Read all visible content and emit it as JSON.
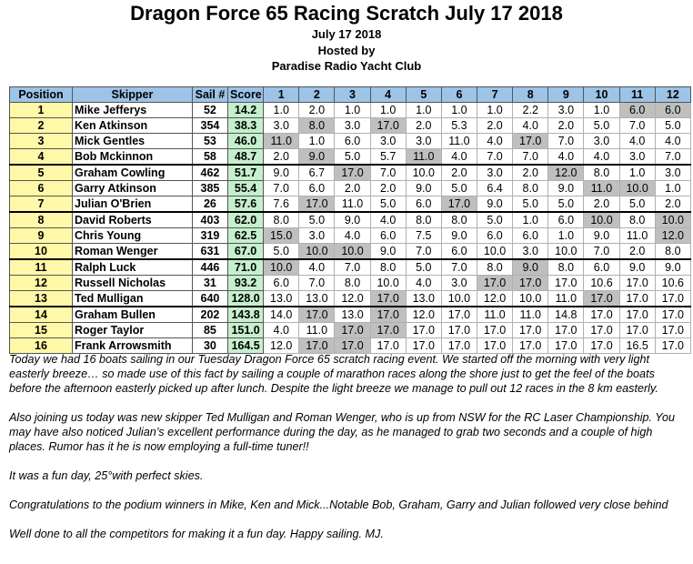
{
  "header": {
    "title": "Dragon Force 65 Racing Scratch  July 17 2018",
    "date": "July 17 2018",
    "hosted_label": "Hosted by",
    "club": "Paradise Radio Yacht Club"
  },
  "table": {
    "columns": [
      "Position",
      "Skipper",
      "Sail #",
      "Score",
      "1",
      "2",
      "3",
      "4",
      "5",
      "6",
      "7",
      "8",
      "9",
      "10",
      "11",
      "12"
    ],
    "rows": [
      {
        "position": "1",
        "skipper": "Mike Jefferys",
        "sail": "52",
        "score": "14.2",
        "races": [
          "1.0",
          "2.0",
          "1.0",
          "1.0",
          "1.0",
          "1.0",
          "1.0",
          "2.2",
          "3.0",
          "1.0",
          "6.0",
          "6.0"
        ],
        "drops": [
          10,
          11
        ]
      },
      {
        "position": "2",
        "skipper": "Ken Atkinson",
        "sail": "354",
        "score": "38.3",
        "races": [
          "3.0",
          "8.0",
          "3.0",
          "17.0",
          "2.0",
          "5.3",
          "2.0",
          "4.0",
          "2.0",
          "5.0",
          "7.0",
          "5.0"
        ],
        "drops": [
          1,
          3
        ]
      },
      {
        "position": "3",
        "skipper": "Mick Gentles",
        "sail": "53",
        "score": "46.0",
        "races": [
          "11.0",
          "1.0",
          "6.0",
          "3.0",
          "3.0",
          "11.0",
          "4.0",
          "17.0",
          "7.0",
          "3.0",
          "4.0",
          "4.0"
        ],
        "drops": [
          0,
          7
        ]
      },
      {
        "position": "4",
        "skipper": "Bob Mckinnon",
        "sail": "58",
        "score": "48.7",
        "races": [
          "2.0",
          "9.0",
          "5.0",
          "5.7",
          "11.0",
          "4.0",
          "7.0",
          "7.0",
          "4.0",
          "4.0",
          "3.0",
          "7.0"
        ],
        "drops": [
          1,
          4
        ]
      },
      {
        "position": "5",
        "skipper": "Graham Cowling",
        "sail": "462",
        "score": "51.7",
        "races": [
          "9.0",
          "6.7",
          "17.0",
          "7.0",
          "10.0",
          "2.0",
          "3.0",
          "2.0",
          "12.0",
          "8.0",
          "1.0",
          "3.0"
        ],
        "drops": [
          2,
          8
        ]
      },
      {
        "position": "6",
        "skipper": "Garry Atkinson",
        "sail": "385",
        "score": "55.4",
        "races": [
          "7.0",
          "6.0",
          "2.0",
          "2.0",
          "9.0",
          "5.0",
          "6.4",
          "8.0",
          "9.0",
          "11.0",
          "10.0",
          "1.0"
        ],
        "drops": [
          9,
          10
        ]
      },
      {
        "position": "7",
        "skipper": "Julian O'Brien",
        "sail": "26",
        "score": "57.6",
        "races": [
          "7.6",
          "17.0",
          "11.0",
          "5.0",
          "6.0",
          "17.0",
          "9.0",
          "5.0",
          "5.0",
          "2.0",
          "5.0",
          "2.0"
        ],
        "drops": [
          1,
          5
        ]
      },
      {
        "position": "8",
        "skipper": "David Roberts",
        "sail": "403",
        "score": "62.0",
        "races": [
          "8.0",
          "5.0",
          "9.0",
          "4.0",
          "8.0",
          "8.0",
          "5.0",
          "1.0",
          "6.0",
          "10.0",
          "8.0",
          "10.0"
        ],
        "drops": [
          9,
          11
        ]
      },
      {
        "position": "9",
        "skipper": "Chris Young",
        "sail": "319",
        "score": "62.5",
        "races": [
          "15.0",
          "3.0",
          "4.0",
          "6.0",
          "7.5",
          "9.0",
          "6.0",
          "6.0",
          "1.0",
          "9.0",
          "11.0",
          "12.0"
        ],
        "drops": [
          0,
          11
        ]
      },
      {
        "position": "10",
        "skipper": "Roman Wenger",
        "sail": "631",
        "score": "67.0",
        "races": [
          "5.0",
          "10.0",
          "10.0",
          "9.0",
          "7.0",
          "6.0",
          "10.0",
          "3.0",
          "10.0",
          "7.0",
          "2.0",
          "8.0"
        ],
        "drops": [
          1,
          2
        ]
      },
      {
        "position": "11",
        "skipper": "Ralph Luck",
        "sail": "446",
        "score": "71.0",
        "races": [
          "10.0",
          "4.0",
          "7.0",
          "8.0",
          "5.0",
          "7.0",
          "8.0",
          "9.0",
          "8.0",
          "6.0",
          "9.0",
          "9.0"
        ],
        "drops": [
          0,
          7
        ]
      },
      {
        "position": "12",
        "skipper": "Russell Nicholas",
        "sail": "31",
        "score": "93.2",
        "races": [
          "6.0",
          "7.0",
          "8.0",
          "10.0",
          "4.0",
          "3.0",
          "17.0",
          "17.0",
          "17.0",
          "10.6",
          "17.0",
          "10.6"
        ],
        "drops": [
          6,
          7
        ]
      },
      {
        "position": "13",
        "skipper": "Ted Mulligan",
        "sail": "640",
        "score": "128.0",
        "races": [
          "13.0",
          "13.0",
          "12.0",
          "17.0",
          "13.0",
          "10.0",
          "12.0",
          "10.0",
          "11.0",
          "17.0",
          "17.0",
          "17.0"
        ],
        "drops": [
          3,
          9
        ]
      },
      {
        "position": "14",
        "skipper": "Graham Bullen",
        "sail": "202",
        "score": "143.8",
        "races": [
          "14.0",
          "17.0",
          "13.0",
          "17.0",
          "12.0",
          "17.0",
          "11.0",
          "11.0",
          "14.8",
          "17.0",
          "17.0",
          "17.0"
        ],
        "drops": [
          1,
          3
        ]
      },
      {
        "position": "15",
        "skipper": "Roger Taylor",
        "sail": "85",
        "score": "151.0",
        "races": [
          "4.0",
          "11.0",
          "17.0",
          "17.0",
          "17.0",
          "17.0",
          "17.0",
          "17.0",
          "17.0",
          "17.0",
          "17.0",
          "17.0"
        ],
        "drops": [
          2,
          3
        ]
      },
      {
        "position": "16",
        "skipper": "Frank Arrowsmith",
        "sail": "30",
        "score": "164.5",
        "races": [
          "12.0",
          "17.0",
          "17.0",
          "17.0",
          "17.0",
          "17.0",
          "17.0",
          "17.0",
          "17.0",
          "17.0",
          "16.5",
          "17.0"
        ],
        "drops": [
          1,
          2
        ]
      }
    ],
    "separator_after": [
      3,
      6,
      9,
      12
    ],
    "colors": {
      "header_bg": "#9dc3e6",
      "position_bg": "#fff8a8",
      "score_bg": "#c6efce",
      "drop_bg": "#bfbfbf"
    }
  },
  "report": {
    "paragraphs": [
      "Today we had 16 boats sailing in our Tuesday Dragon Force 65 scratch racing event. We started off the morning with very light easterly breeze… so made use of this fact by sailing a couple of marathon races along the shore just to get the feel of the boats before the afternoon easterly picked up after lunch. Despite the light breeze we manage to pull out 12 races in the 8 km easterly.",
      "Also joining us today was new skipper Ted Mulligan and Roman Wenger, who is up from NSW for the RC Laser Championship. You may have also noticed Julian’s excellent performance during the day, as he managed to grab two seconds and a couple of high places. Rumor has it he is now employing a full-time tuner!!",
      "It was a fun day, 25°with perfect skies.",
      "Congratulations to the podium winners in Mike, Ken and Mick...Notable Bob, Graham, Garry and Julian followed very close behind",
      "Well done to all the competitors for making it a fun day.  Happy sailing. MJ."
    ]
  }
}
